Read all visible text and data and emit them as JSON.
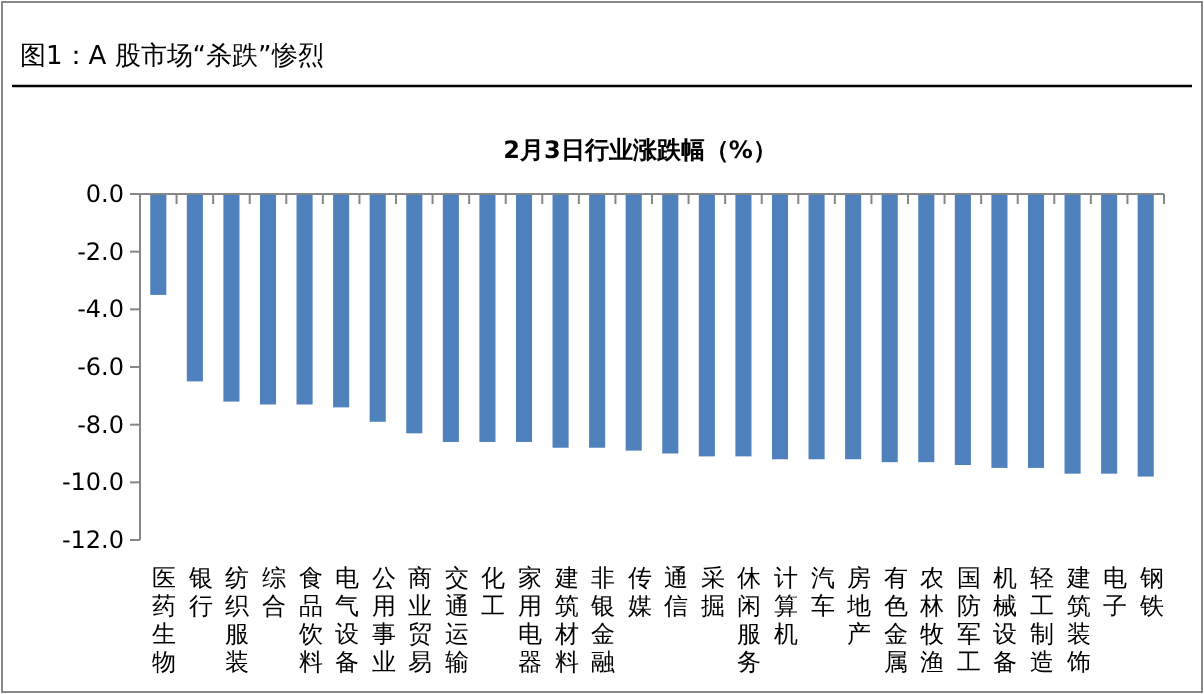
{
  "chart_data": {
    "type": "bar",
    "title": "2月3日行业涨跌幅（%）",
    "annotations": [
      "图1：A 股市场“杀跌”惨烈"
    ],
    "categories": [
      "医药生物",
      "银行",
      "纺织服装",
      "综合",
      "食品饮料",
      "电气设备",
      "公用事业",
      "商业贸易",
      "交通运输",
      "化工",
      "家用电器",
      "建筑材料",
      "非银金融",
      "传媒",
      "通信",
      "采掘",
      "休闲服务",
      "计算机",
      "汽车",
      "房地产",
      "有色金属",
      "农林牧渔",
      "国防军工",
      "机械设备",
      "轻工制造",
      "建筑装饰",
      "电子",
      "钢铁"
    ],
    "values": [
      -3.5,
      -6.5,
      -7.2,
      -7.3,
      -7.3,
      -7.4,
      -7.9,
      -8.3,
      -8.6,
      -8.6,
      -8.6,
      -8.8,
      -8.8,
      -8.9,
      -9.0,
      -9.1,
      -9.1,
      -9.2,
      -9.2,
      -9.2,
      -9.3,
      -9.3,
      -9.4,
      -9.5,
      -9.5,
      -9.7,
      -9.7,
      -9.8
    ],
    "color": "#4f81bd",
    "ylim": [
      -12,
      0
    ],
    "yticks": [
      {
        "value": 0,
        "label": "0.0"
      },
      {
        "value": -2,
        "label": "-2.0"
      },
      {
        "value": -4,
        "label": "-4.0"
      },
      {
        "value": -6,
        "label": "-6.0"
      },
      {
        "value": -8,
        "label": "-8.0"
      },
      {
        "value": -10,
        "label": "-10.0"
      },
      {
        "value": -12,
        "label": "-12.0"
      }
    ],
    "grid": false,
    "legend": false
  }
}
